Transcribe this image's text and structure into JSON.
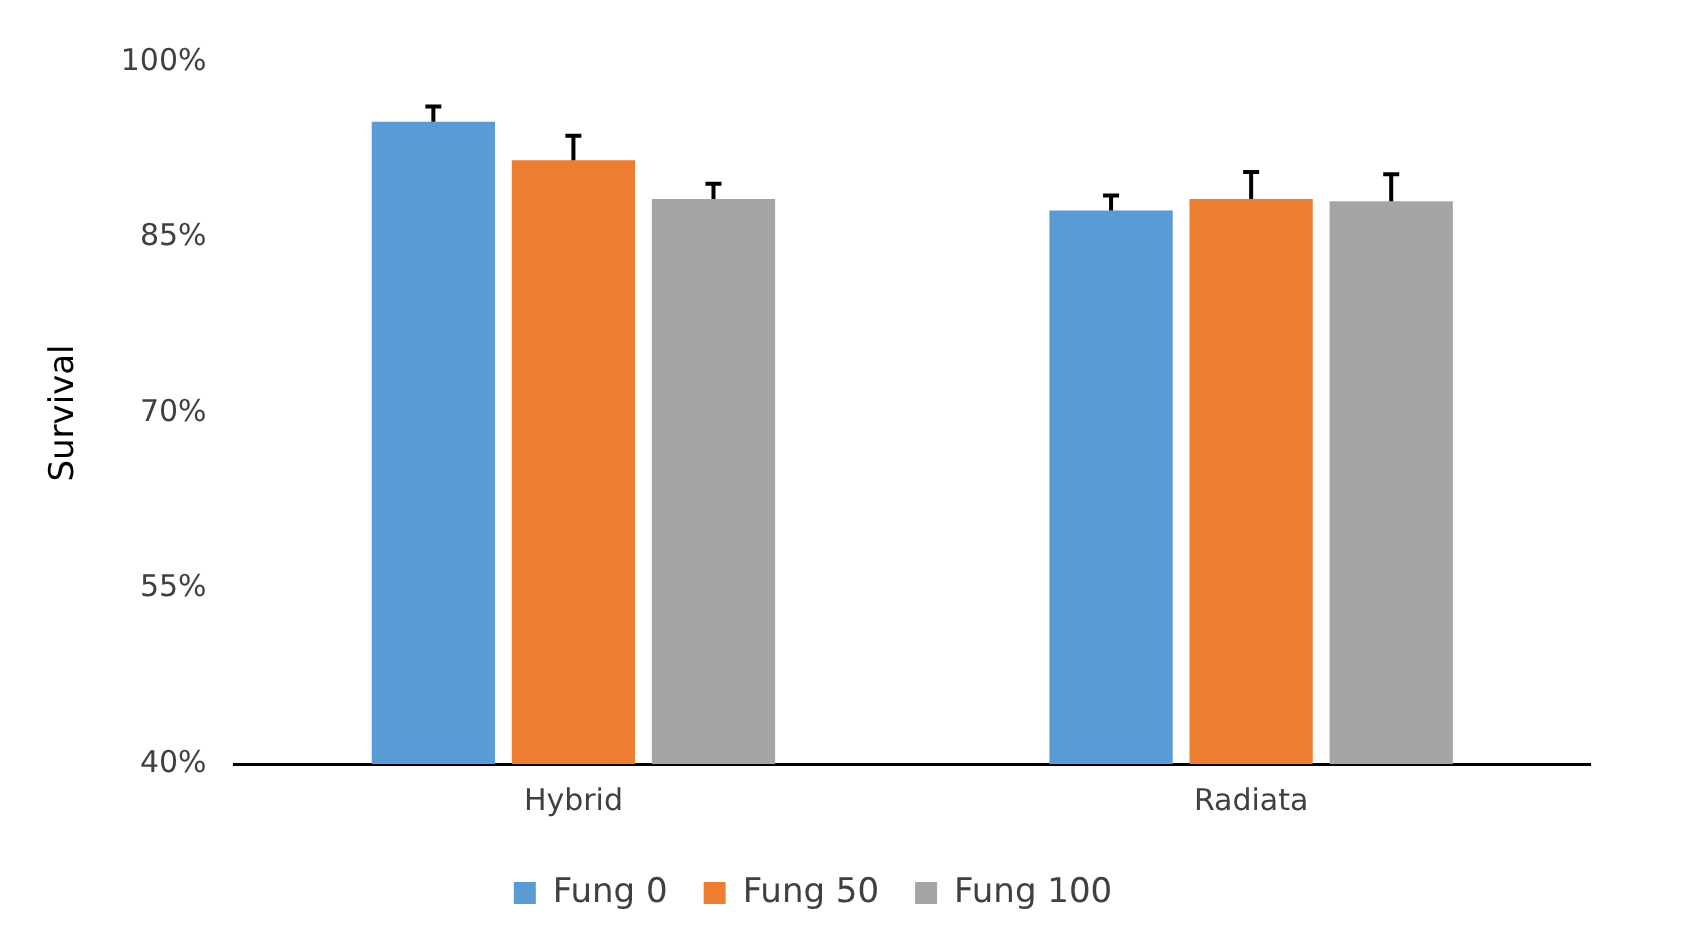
{
  "chart_data": {
    "type": "bar",
    "ylabel": "Survival",
    "categories": [
      "Hybrid",
      "Radiata"
    ],
    "series": [
      {
        "name": "Fung 0",
        "color": "#5b9bd5",
        "values": [
          94.9,
          87.3
        ],
        "errors": [
          [
            94.9,
            96.2
          ],
          [
            87.3,
            88.6
          ]
        ]
      },
      {
        "name": "Fung 50",
        "color": "#ed7d31",
        "values": [
          91.6,
          88.3
        ],
        "errors": [
          [
            91.6,
            93.7
          ],
          [
            88.3,
            90.6
          ]
        ]
      },
      {
        "name": "Fung 100",
        "color": "#a5a5a5",
        "values": [
          88.3,
          88.1
        ],
        "errors": [
          [
            88.3,
            89.6
          ],
          [
            88.1,
            90.4
          ]
        ]
      }
    ],
    "ylim": [
      40,
      100
    ],
    "yticks": [
      {
        "value": 40,
        "label": "40%"
      },
      {
        "value": 55,
        "label": "55%"
      },
      {
        "value": 70,
        "label": "70%"
      },
      {
        "value": 85,
        "label": "85%"
      },
      {
        "value": 100,
        "label": "100%"
      }
    ],
    "grid": false,
    "legend": "bottom"
  }
}
